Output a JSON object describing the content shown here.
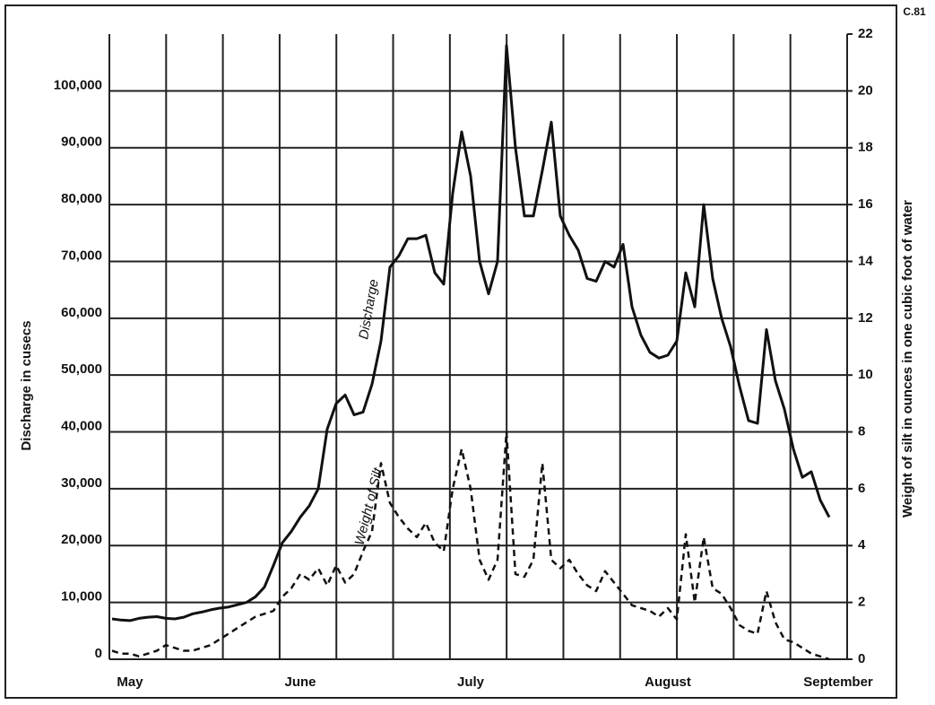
{
  "chart_data": {
    "type": "line",
    "annotation": "C.81",
    "y_label": "Discharge in cusecs",
    "y2_label": "Weight of silt in ounces in one cubic foot of water",
    "categories": [
      null,
      null,
      "May",
      null,
      null,
      null,
      null,
      null,
      null,
      null,
      null,
      null,
      null,
      null,
      null,
      null,
      null,
      null,
      null,
      null,
      null,
      "June",
      null,
      null,
      null,
      null,
      null,
      null,
      null,
      null,
      null,
      null,
      null,
      null,
      null,
      null,
      null,
      null,
      null,
      null,
      "July",
      null,
      null,
      null,
      null,
      null,
      null,
      null,
      null,
      null,
      null,
      null,
      null,
      null,
      null,
      null,
      null,
      null,
      null,
      null,
      null,
      null,
      "August",
      null,
      null,
      null,
      null,
      null,
      null,
      null,
      null,
      null,
      null,
      null,
      null,
      null,
      null,
      null,
      null,
      null,
      null,
      "September"
    ],
    "series": [
      {
        "name": "Discharge",
        "color": "#111111",
        "values": [
          7100,
          6900,
          6800,
          7200,
          7400,
          7500,
          7200,
          7100,
          7400,
          8000,
          8300,
          8700,
          9000,
          9200,
          9600,
          10000,
          11000,
          12700,
          16500,
          20500,
          22500,
          25000,
          27000,
          30000,
          40500,
          45000,
          46500,
          43000,
          43500,
          48400,
          56000,
          69000,
          71000,
          74000,
          74000,
          74600,
          68000,
          66000,
          82000,
          92800,
          85000,
          70000,
          64300,
          70000,
          108000,
          90000,
          78000,
          78000,
          86000,
          94500,
          78000,
          74600,
          72000,
          67000,
          66500,
          70000,
          69000,
          73000,
          62000,
          57000,
          54000,
          53000,
          53500,
          56000,
          68000,
          62000,
          80000,
          67000,
          60000,
          55000,
          48000,
          42000,
          41500,
          58000,
          49000,
          44000,
          37000,
          32000,
          33000,
          28000,
          25000,
          null
        ]
      },
      {
        "name": "Weight of Silt",
        "color": "#111111",
        "axis": "y2",
        "values": [
          0.3,
          0.2,
          0.2,
          0.1,
          0.2,
          0.3,
          0.5,
          0.4,
          0.3,
          0.3,
          0.4,
          0.5,
          0.7,
          0.9,
          1.1,
          1.3,
          1.5,
          1.6,
          1.7,
          2.2,
          2.5,
          3.0,
          2.8,
          3.2,
          2.6,
          3.3,
          2.7,
          3.0,
          3.8,
          4.5,
          6.9,
          5.5,
          5.0,
          4.6,
          4.3,
          4.8,
          4.1,
          3.8,
          6.0,
          7.4,
          6.0,
          3.5,
          2.8,
          3.5,
          8.0,
          3.0,
          2.9,
          3.5,
          6.9,
          3.5,
          3.2,
          3.5,
          3.0,
          2.6,
          2.4,
          3.1,
          2.7,
          2.3,
          1.9,
          1.8,
          1.7,
          1.5,
          1.8,
          1.4,
          4.4,
          2.0,
          4.3,
          2.5,
          2.3,
          1.8,
          1.2,
          1.0,
          0.9,
          2.4,
          1.3,
          0.7,
          0.6,
          0.4,
          0.2,
          0.1,
          0.0,
          null
        ]
      }
    ],
    "ylim": [
      0,
      110000
    ],
    "yticks": [
      0,
      {
        "value": 10000,
        "label": "10,000"
      },
      {
        "value": 20000,
        "label": "20,000"
      },
      {
        "value": 30000,
        "label": "30,000"
      },
      {
        "value": 40000,
        "label": "40,000"
      },
      {
        "value": 50000,
        "label": "50,000"
      },
      {
        "value": 60000,
        "label": "60,000"
      },
      {
        "value": 70000,
        "label": "70,000"
      },
      {
        "value": 80000,
        "label": "80,000"
      },
      {
        "value": 90000,
        "label": "90,000"
      },
      {
        "value": 100000,
        "label": "100,000"
      }
    ],
    "y2lim": [
      0,
      22
    ],
    "y2ticks": [
      0,
      2,
      4,
      6,
      8,
      10,
      12,
      14,
      16,
      18,
      20,
      22
    ],
    "grid": true
  }
}
